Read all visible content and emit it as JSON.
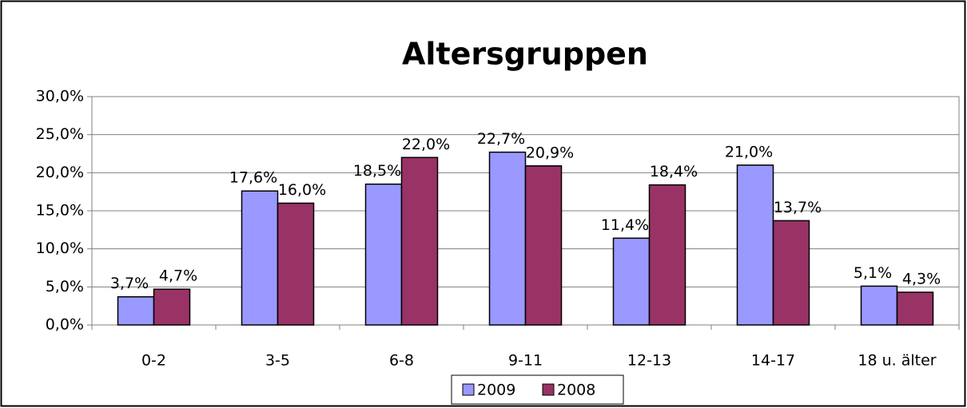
{
  "chart_data": {
    "type": "bar",
    "title": "Altersgruppen",
    "categories": [
      "0-2",
      "3-5",
      "6-8",
      "9-11",
      "12-13",
      "14-17",
      "18 u. älter"
    ],
    "series": [
      {
        "name": "2009",
        "color": "#9999ff",
        "values": [
          3.7,
          17.6,
          18.5,
          22.7,
          11.4,
          21.0,
          5.1
        ],
        "value_labels": [
          "3,7%",
          "17,6%",
          "18,5%",
          "22,7%",
          "11,4%",
          "21,0%",
          "5,1%"
        ]
      },
      {
        "name": "2008",
        "color": "#993366",
        "values": [
          4.7,
          16.0,
          22.0,
          20.9,
          18.4,
          13.7,
          4.3
        ],
        "value_labels": [
          "4,7%",
          "16,0%",
          "22,0%",
          "20,9%",
          "18,4%",
          "13,7%",
          "4,3%"
        ]
      }
    ],
    "ylim": [
      0,
      30
    ],
    "yticks": [
      {
        "value": 0,
        "label": "0,0%"
      },
      {
        "value": 5,
        "label": "5,0%"
      },
      {
        "value": 10,
        "label": "10,0%"
      },
      {
        "value": 15,
        "label": "15,0%"
      },
      {
        "value": 20,
        "label": "20,0%"
      },
      {
        "value": 25,
        "label": "25,0%"
      },
      {
        "value": 30,
        "label": "30,0%"
      }
    ],
    "grid": true,
    "legend": "bottom"
  }
}
